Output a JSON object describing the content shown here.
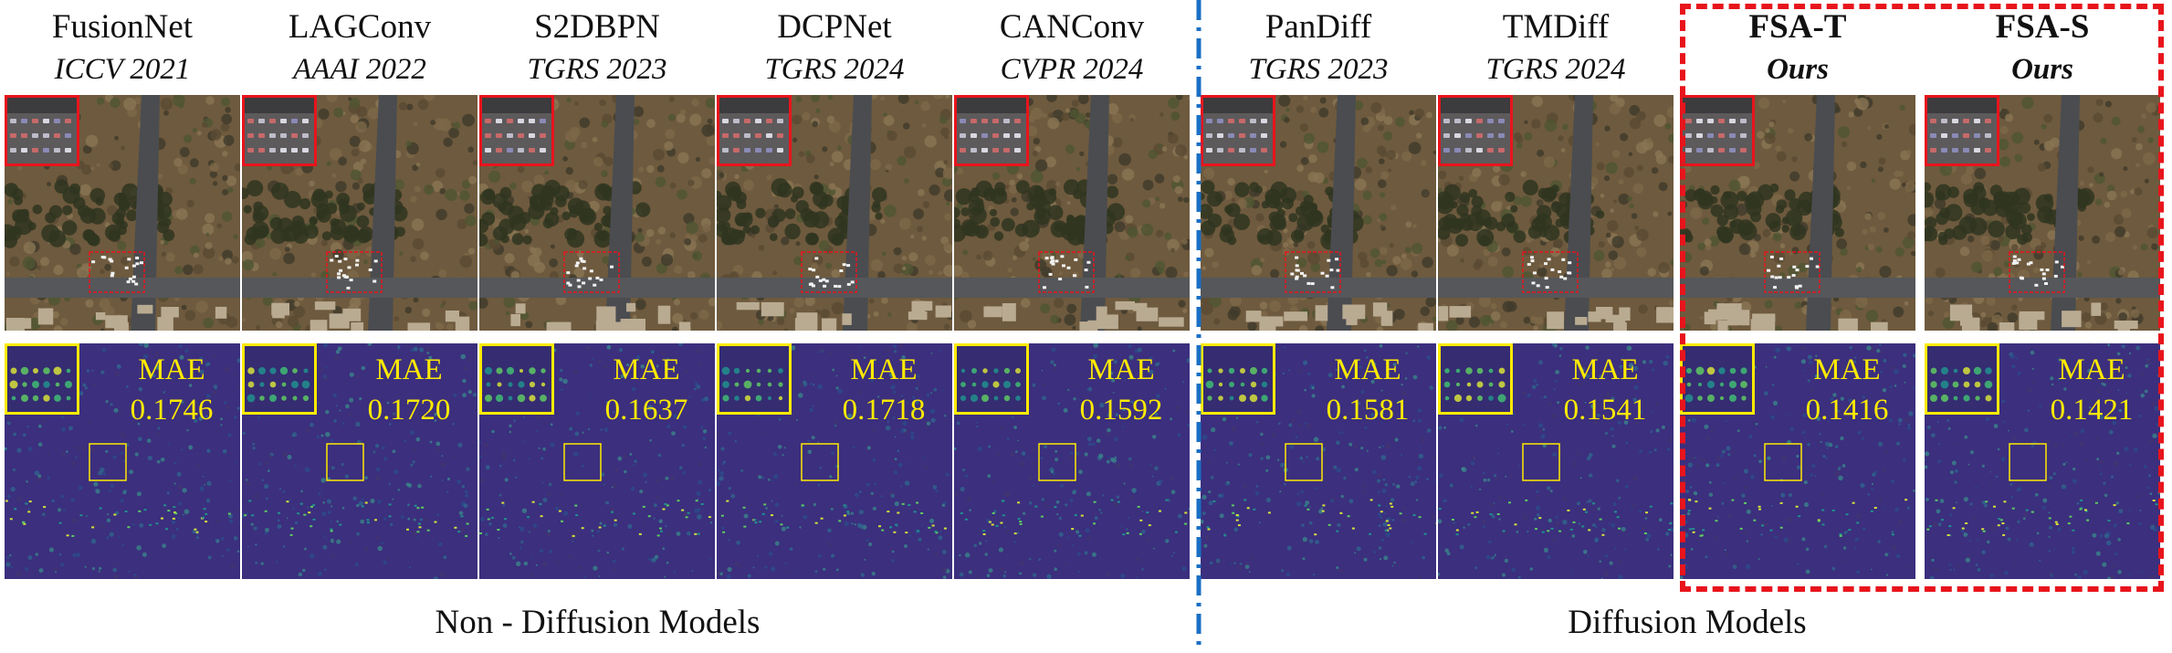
{
  "columns": [
    {
      "method": "FusionNet",
      "venue": "ICCV 2021",
      "mae_label": "MAE",
      "mae": "0.1746",
      "group": "non-diffusion"
    },
    {
      "method": "LAGConv",
      "venue": "AAAI 2022",
      "mae_label": "MAE",
      "mae": "0.1720",
      "group": "non-diffusion"
    },
    {
      "method": "S2DBPN",
      "venue": "TGRS 2023",
      "mae_label": "MAE",
      "mae": "0.1637",
      "group": "non-diffusion"
    },
    {
      "method": "DCPNet",
      "venue": "TGRS 2024",
      "mae_label": "MAE",
      "mae": "0.1718",
      "group": "non-diffusion"
    },
    {
      "method": "CANConv",
      "venue": "CVPR 2024",
      "mae_label": "MAE",
      "mae": "0.1592",
      "group": "non-diffusion"
    },
    {
      "method": "PanDiff",
      "venue": "TGRS 2023",
      "mae_label": "MAE",
      "mae": "0.1581",
      "group": "diffusion"
    },
    {
      "method": "TMDiff",
      "venue": "TGRS 2024",
      "mae_label": "MAE",
      "mae": "0.1541",
      "group": "diffusion"
    },
    {
      "method": "FSA-T",
      "venue": "Ours",
      "mae_label": "MAE",
      "mae": "0.1416",
      "group": "diffusion",
      "highlight": true
    },
    {
      "method": "FSA-S",
      "venue": "Ours",
      "mae_label": "MAE",
      "mae": "0.1421",
      "group": "diffusion",
      "highlight": true
    }
  ],
  "groups": {
    "non_diffusion": "Non - Diffusion Models",
    "diffusion": "Diffusion Models"
  },
  "colors": {
    "zoom_rgb": "#e8141c",
    "zoom_error": "#ffea00",
    "separator": "#1a6fc4",
    "ours_box": "#e8141c",
    "error_bg": "#3b2f7e"
  }
}
